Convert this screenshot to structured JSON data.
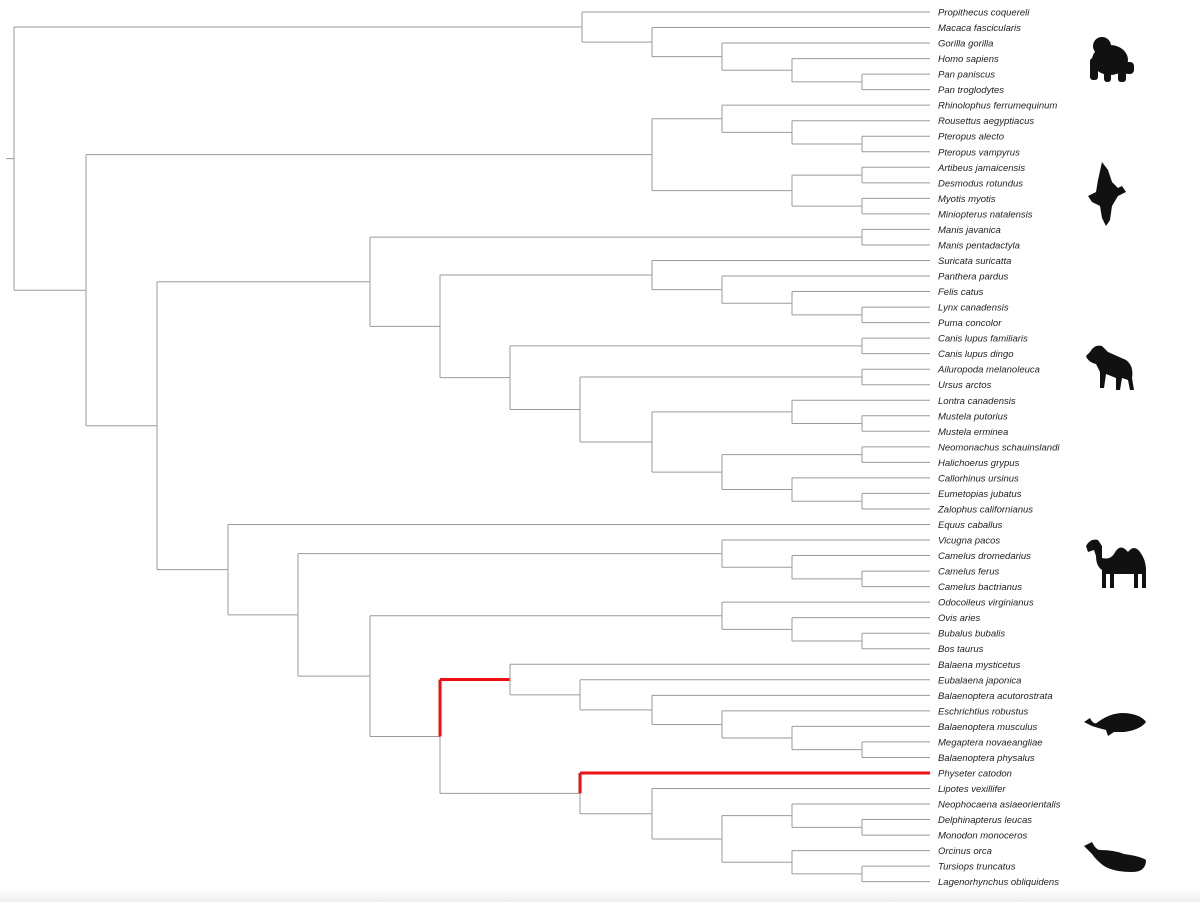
{
  "tree": {
    "highlight_color": "#ee1111",
    "branch_color": "#9a9a9a",
    "leaves": [
      "Propithecus coquereli",
      "Macaca fascicularis",
      "Gorilla gorilla",
      "Homo sapiens",
      "Pan paniscus",
      "Pan troglodytes",
      "Rhinolophus ferrumequinum",
      "Rousettus aegyptiacus",
      "Pteropus alecto",
      "Pteropus vampyrus",
      "Artibeus jamaicensis",
      "Desmodus rotundus",
      "Myotis myotis",
      "Miniopterus natalensis",
      "Manis javanica",
      "Manis pentadactyla",
      "Suricata suricatta",
      "Panthera pardus",
      "Felis catus",
      "Lynx canadensis",
      "Puma concolor",
      "Canis lupus familiaris",
      "Canis lupus dingo",
      "Ailuropoda melanoleuca",
      "Ursus arctos",
      "Lontra canadensis",
      "Mustela putorius",
      "Mustela erminea",
      "Neomonachus schauinslandi",
      "Halichoerus grypus",
      "Callorhinus ursinus",
      "Eumetopias jubatus",
      "Zalophus californianus",
      "Equus caballus",
      "Vicugna pacos",
      "Camelus dromedarius",
      "Camelus ferus",
      "Camelus bactrianus",
      "Odocoileus virginianus",
      "Ovis aries",
      "Bubalus bubalis",
      "Bos taurus",
      "Balaena mysticetus",
      "Eubalaena japonica",
      "Balaenoptera acutorostrata",
      "Eschrichtius robustus",
      "Balaenoptera musculus",
      "Megaptera novaeangliae",
      "Balaenoptera physalus",
      "Physeter catodon",
      "Lipotes vexillifer",
      "Neophocaena asiaeorientalis",
      "Delphinapterus leucas",
      "Monodon monoceros",
      "Orcinus orca",
      "Tursiops truncatus",
      "Lagenorhynchus obliquidens"
    ]
  },
  "silhouettes": [
    {
      "icon": "gorilla-silhouette-icon",
      "near_leaf": 3
    },
    {
      "icon": "bat-silhouette-icon",
      "near_leaf": 12
    },
    {
      "icon": "dog-silhouette-icon",
      "near_leaf": 23
    },
    {
      "icon": "camel-silhouette-icon",
      "near_leaf": 36
    },
    {
      "icon": "whale-silhouette-icon",
      "near_leaf": 46
    },
    {
      "icon": "sperm-whale-silhouette-icon",
      "near_leaf": 55
    }
  ]
}
